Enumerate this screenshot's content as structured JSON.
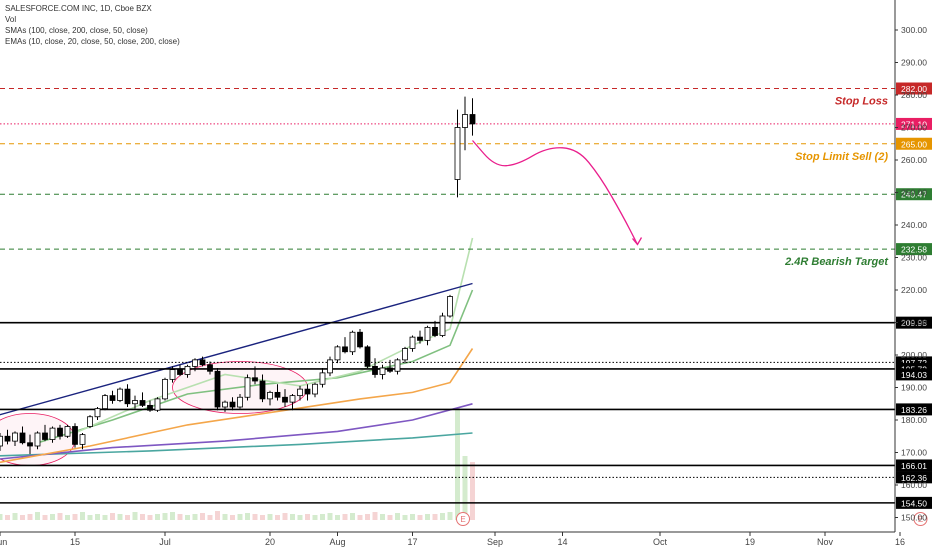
{
  "header": {
    "title": "SALESFORCE.COM INC, 1D, Cboe BZX",
    "vol_label": "Vol",
    "smas_label": "SMAs (100, close, 200, close, 50, close)",
    "emas_label": "EMAs (10, close, 20, close, 50, close, 200, close)"
  },
  "colors": {
    "up": "#26a69a",
    "down": "#ef5350",
    "candle": "#000000",
    "stop_loss": "#c62828",
    "stop_limit": "#e69500",
    "target": "#2e7d32",
    "last_price": "#e91e63",
    "trend_line": "#1a237e",
    "projection": "#e91e8c",
    "sma200": "#4aa6a0",
    "sma100": "#7e57c2",
    "sma50": "#f4a64a",
    "ema10": "#b8e0b0",
    "ema20": "#80c080",
    "ema50": "#9fd09b"
  },
  "chart_data": {
    "type": "candlestick",
    "price_axis": {
      "range": [
        150,
        300
      ],
      "ticks": [
        "300.00",
        "290.00",
        "280.00",
        "270.00",
        "260.00",
        "250.00",
        "240.00",
        "230.00",
        "220.00",
        "210.00",
        "200.00",
        "190.00",
        "180.00",
        "170.00",
        "160.00",
        "150.00"
      ]
    },
    "time_axis": {
      "labels": [
        {
          "label": "Jun",
          "bar": 0
        },
        {
          "label": "15",
          "bar": 10
        },
        {
          "label": "Jul",
          "bar": 22
        },
        {
          "label": "20",
          "bar": 36
        },
        {
          "label": "Aug",
          "bar": 45
        },
        {
          "label": "17",
          "bar": 55
        },
        {
          "label": "Sep",
          "bar": 66
        },
        {
          "label": "14",
          "bar": 75
        },
        {
          "label": "Oct",
          "bar": 88
        },
        {
          "label": "19",
          "bar": 100
        },
        {
          "label": "Nov",
          "bar": 110
        },
        {
          "label": "16",
          "bar": 120
        }
      ]
    },
    "candles": [
      [
        172.0,
        176.0,
        170.5,
        175.0
      ],
      [
        175.0,
        177.0,
        172.5,
        173.5
      ],
      [
        173.5,
        176.5,
        172.0,
        176.0
      ],
      [
        176.0,
        178.0,
        172.5,
        173.0
      ],
      [
        173.0,
        175.5,
        169.5,
        172.0
      ],
      [
        172.0,
        176.5,
        171.0,
        176.0
      ],
      [
        176.0,
        178.5,
        173.5,
        174.0
      ],
      [
        174.0,
        178.0,
        173.0,
        177.5
      ],
      [
        177.5,
        178.5,
        174.0,
        175.0
      ],
      [
        175.0,
        178.5,
        174.5,
        178.0
      ],
      [
        178.0,
        179.0,
        171.5,
        172.5
      ],
      [
        172.5,
        176.0,
        171.0,
        175.5
      ],
      [
        178.0,
        181.5,
        177.5,
        181.0
      ],
      [
        181.0,
        184.0,
        180.0,
        183.5
      ],
      [
        183.5,
        188.0,
        183.0,
        187.5
      ],
      [
        187.5,
        189.0,
        185.0,
        186.0
      ],
      [
        186.0,
        190.0,
        185.5,
        189.5
      ],
      [
        189.5,
        191.0,
        184.0,
        185.0
      ],
      [
        185.0,
        187.5,
        183.5,
        186.0
      ],
      [
        186.0,
        188.5,
        184.0,
        184.5
      ],
      [
        184.5,
        186.0,
        182.5,
        183.0
      ],
      [
        183.0,
        187.0,
        182.5,
        186.5
      ],
      [
        186.5,
        193.0,
        186.0,
        192.5
      ],
      [
        192.5,
        196.5,
        191.5,
        195.5
      ],
      [
        195.5,
        197.0,
        193.5,
        194.0
      ],
      [
        194.0,
        197.0,
        193.0,
        196.5
      ],
      [
        196.5,
        199.0,
        195.0,
        198.5
      ],
      [
        198.5,
        199.5,
        196.5,
        197.0
      ],
      [
        197.0,
        198.0,
        194.0,
        195.0
      ],
      [
        195.0,
        196.0,
        183.0,
        184.0
      ],
      [
        184.0,
        186.0,
        182.5,
        185.5
      ],
      [
        185.5,
        187.0,
        183.0,
        184.0
      ],
      [
        184.0,
        188.0,
        183.5,
        187.0
      ],
      [
        187.0,
        194.0,
        186.0,
        193.0
      ],
      [
        193.0,
        196.5,
        191.0,
        192.0
      ],
      [
        192.0,
        194.0,
        185.5,
        186.5
      ],
      [
        186.5,
        189.0,
        184.5,
        188.5
      ],
      [
        188.5,
        191.0,
        186.0,
        187.0
      ],
      [
        187.0,
        189.5,
        184.0,
        185.5
      ],
      [
        185.5,
        188.0,
        183.0,
        187.5
      ],
      [
        187.5,
        190.5,
        186.0,
        189.5
      ],
      [
        189.5,
        191.0,
        186.0,
        188.0
      ],
      [
        188.0,
        191.5,
        187.0,
        191.0
      ],
      [
        191.0,
        196.0,
        190.0,
        194.5
      ],
      [
        194.5,
        199.5,
        193.5,
        198.5
      ],
      [
        198.5,
        203.0,
        197.5,
        202.5
      ],
      [
        202.5,
        205.5,
        200.5,
        201.0
      ],
      [
        201.0,
        207.5,
        200.0,
        207.0
      ],
      [
        207.0,
        208.0,
        202.0,
        202.5
      ],
      [
        202.5,
        203.0,
        196.0,
        196.5
      ],
      [
        196.5,
        199.0,
        193.0,
        194.0
      ],
      [
        194.0,
        197.0,
        192.5,
        196.0
      ],
      [
        196.0,
        198.5,
        194.5,
        195.0
      ],
      [
        195.0,
        199.0,
        194.0,
        198.5
      ],
      [
        198.5,
        202.5,
        197.5,
        202.0
      ],
      [
        202.0,
        206.0,
        201.0,
        205.5
      ],
      [
        205.5,
        207.5,
        203.5,
        204.5
      ],
      [
        204.5,
        209.0,
        203.0,
        208.5
      ],
      [
        208.5,
        210.5,
        205.5,
        206.0
      ],
      [
        206.0,
        213.0,
        205.5,
        212.0
      ],
      [
        212.0,
        218.5,
        211.5,
        218.0
      ],
      [
        254.0,
        275.5,
        248.5,
        270.0
      ],
      [
        270.0,
        279.5,
        263.0,
        274.0
      ],
      [
        274.0,
        279.0,
        267.5,
        271.1
      ]
    ],
    "volume": {
      "range": [
        0,
        125
      ],
      "values": [
        6,
        5,
        7,
        5,
        6,
        8,
        5,
        6,
        7,
        5,
        6,
        8,
        5,
        6,
        5,
        7,
        6,
        5,
        8,
        6,
        5,
        6,
        7,
        8,
        6,
        5,
        6,
        7,
        5,
        9,
        6,
        5,
        6,
        7,
        6,
        5,
        6,
        5,
        7,
        6,
        5,
        6,
        5,
        6,
        7,
        5,
        6,
        7,
        5,
        6,
        8,
        6,
        5,
        7,
        5,
        6,
        5,
        6,
        6,
        7,
        8,
        112,
        64,
        58
      ],
      "earnings_marker_bar": 62,
      "earnings_label": "E",
      "future_earnings_bar": 123,
      "future_earnings_label": "E"
    },
    "moving_averages": [
      {
        "key": "sma200",
        "points": [
          [
            0,
            169.0
          ],
          [
            20,
            170.5
          ],
          [
            40,
            172.5
          ],
          [
            55,
            174.5
          ],
          [
            63,
            176.0
          ]
        ]
      },
      {
        "key": "sma100",
        "points": [
          [
            0,
            168.0
          ],
          [
            15,
            171.5
          ],
          [
            30,
            173.5
          ],
          [
            45,
            176.5
          ],
          [
            55,
            180.0
          ],
          [
            63,
            185.0
          ]
        ]
      },
      {
        "key": "sma50",
        "points": [
          [
            0,
            167.0
          ],
          [
            12,
            172.0
          ],
          [
            25,
            178.5
          ],
          [
            38,
            183.0
          ],
          [
            48,
            186.5
          ],
          [
            55,
            188.5
          ],
          [
            60,
            191.5
          ],
          [
            63,
            202.0
          ]
        ]
      },
      {
        "key": "ema20",
        "points": [
          [
            5,
            173.0
          ],
          [
            15,
            180.0
          ],
          [
            25,
            188.0
          ],
          [
            35,
            191.0
          ],
          [
            45,
            193.0
          ],
          [
            55,
            198.0
          ],
          [
            60,
            203.0
          ],
          [
            63,
            220.0
          ]
        ]
      },
      {
        "key": "ema10",
        "points": [
          [
            10,
            176.0
          ],
          [
            20,
            186.0
          ],
          [
            30,
            194.0
          ],
          [
            40,
            190.5
          ],
          [
            48,
            195.0
          ],
          [
            55,
            203.0
          ],
          [
            60,
            208.0
          ],
          [
            63,
            236.0
          ]
        ]
      }
    ],
    "horizontal_levels": [
      {
        "price": 282.0,
        "label": "282.00",
        "key": "stop_loss",
        "note": "Stop Loss",
        "style": "dashed"
      },
      {
        "price": 271.1,
        "label": "271.10",
        "key": "last_price",
        "note": "",
        "style": "dotted"
      },
      {
        "price": 265.0,
        "label": "265.00",
        "key": "stop_limit",
        "note": "Stop Limit Sell (2)",
        "style": "dashed"
      },
      {
        "price": 249.47,
        "label": "249.47",
        "key": "target",
        "note": "",
        "style": "dashed"
      },
      {
        "price": 232.58,
        "label": "232.58",
        "key": "target",
        "note": "2.4R Bearish Target",
        "style": "dashed"
      },
      {
        "price": 209.95,
        "label": "209.95",
        "key": "candle",
        "note": "",
        "style": "solid"
      },
      {
        "price": 197.72,
        "label": "197.72",
        "key": "candle",
        "note": "",
        "style": "dotted"
      },
      {
        "price": 195.72,
        "label": "195.72",
        "key": "candle",
        "note": "",
        "style": "solid"
      },
      {
        "price": 194.03,
        "label": "194.03",
        "key": "candle",
        "note": "",
        "style": "badge"
      },
      {
        "price": 183.26,
        "label": "183.26",
        "key": "candle",
        "note": "",
        "style": "solid"
      },
      {
        "price": 166.01,
        "label": "166.01",
        "key": "candle",
        "note": "",
        "style": "solid"
      },
      {
        "price": 162.36,
        "label": "162.36",
        "key": "candle",
        "note": "",
        "style": "dotted"
      },
      {
        "price": 154.5,
        "label": "154.50",
        "key": "candle",
        "note": "",
        "style": "solid"
      }
    ],
    "trend_line": {
      "from": [
        -1,
        181.0
      ],
      "to": [
        63,
        222.0
      ]
    },
    "projection_path": [
      [
        63,
        266.0
      ],
      [
        66,
        258.0
      ],
      [
        69,
        258.5
      ],
      [
        73,
        264.0
      ],
      [
        77,
        263.5
      ],
      [
        80,
        255.0
      ],
      [
        83,
        243.0
      ],
      [
        85,
        234.0
      ]
    ],
    "highlight_ellipses": [
      {
        "center": [
          4,
          174.0
        ],
        "radius_bars": 6,
        "radius_price": 8
      },
      {
        "center": [
          32,
          190.0
        ],
        "radius_bars": 9,
        "radius_price": 8
      }
    ]
  }
}
